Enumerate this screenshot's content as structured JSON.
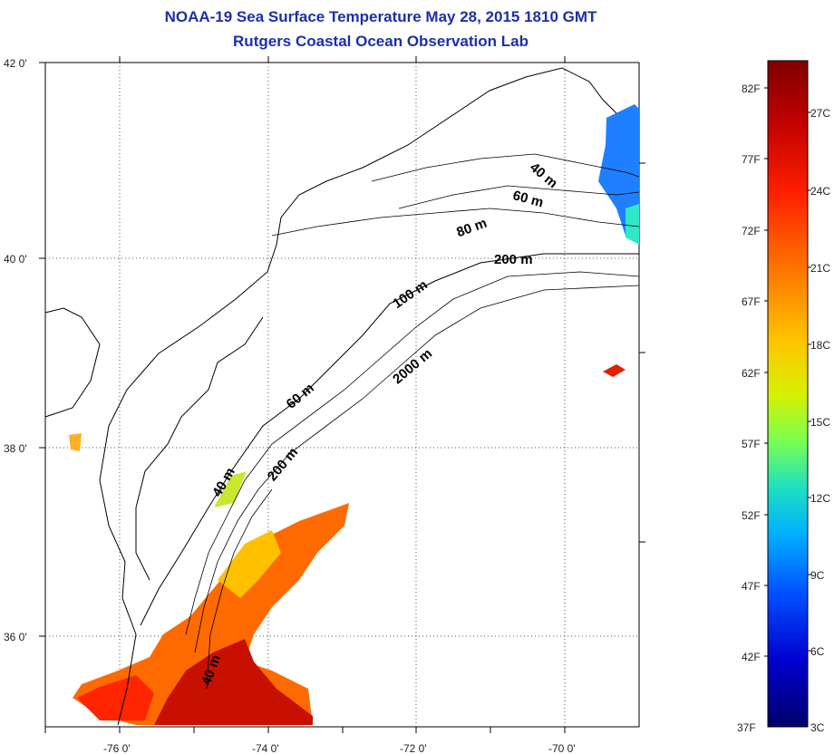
{
  "title": {
    "line1": "NOAA-19 Sea Surface Temperature May 28, 2015 1810 GMT",
    "line2": "Rutgers Coastal Ocean Observation Lab"
  },
  "map": {
    "lat_labels": [
      "42 0'",
      "40 0'",
      "38 0'",
      "36 0'"
    ],
    "lon_labels": [
      "-76 0'",
      "-74 0'",
      "-72 0'",
      "-70 0'"
    ],
    "grid": true,
    "bathymetry_labels": [
      "40 m",
      "60 m",
      "80 m",
      "200 m",
      "100 m",
      "2000 m",
      "60 m",
      "40 m",
      "200 m",
      "40 m"
    ]
  },
  "colorbar": {
    "fahrenheit_labels": [
      "82F",
      "77F",
      "72F",
      "67F",
      "62F",
      "57F",
      "52F",
      "47F",
      "42F",
      "37F"
    ],
    "celsius_labels": [
      "27C",
      "24C",
      "21C",
      "18C",
      "15C",
      "12C",
      "9C",
      "6C",
      "3C"
    ],
    "colors": [
      "#7f0000",
      "#c00000",
      "#ff2000",
      "#ff7a00",
      "#ffc400",
      "#d8f000",
      "#7aff50",
      "#20e0c0",
      "#00b0ff",
      "#0050ff",
      "#0000d0",
      "#00006a"
    ]
  }
}
